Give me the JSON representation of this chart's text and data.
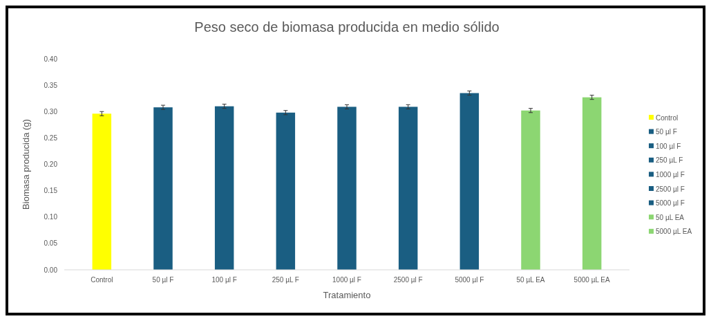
{
  "chart_data": {
    "type": "bar",
    "title": "Peso seco de biomasa producida en medio sólido",
    "xlabel": "Tratamiento",
    "ylabel": "Biomasa producida (g)",
    "categories": [
      "Control",
      "50 µl F",
      "100 µl F",
      "250 µL F",
      "1000 µl F",
      "2500 µl F",
      "5000 µl F",
      "50 µL EA",
      "5000 µL EA"
    ],
    "series": [
      {
        "name": "Control",
        "color": "#ffff00",
        "values": [
          0.296,
          null,
          null,
          null,
          null,
          null,
          null,
          null,
          null
        ],
        "errors": [
          0.004,
          null,
          null,
          null,
          null,
          null,
          null,
          null,
          null
        ]
      },
      {
        "name": "50 µl F",
        "color": "#1a5e82",
        "values": [
          null,
          0.308,
          null,
          null,
          null,
          null,
          null,
          null,
          null
        ],
        "errors": [
          null,
          0.004,
          null,
          null,
          null,
          null,
          null,
          null,
          null
        ]
      },
      {
        "name": "100 µl F",
        "color": "#1a5e82",
        "values": [
          null,
          null,
          0.31,
          null,
          null,
          null,
          null,
          null,
          null
        ],
        "errors": [
          null,
          null,
          0.004,
          null,
          null,
          null,
          null,
          null,
          null
        ]
      },
      {
        "name": "250 µL F",
        "color": "#1a5e82",
        "values": [
          null,
          null,
          null,
          0.298,
          null,
          null,
          null,
          null,
          null
        ],
        "errors": [
          null,
          null,
          null,
          0.004,
          null,
          null,
          null,
          null,
          null
        ]
      },
      {
        "name": "1000 µl F",
        "color": "#1a5e82",
        "values": [
          null,
          null,
          null,
          null,
          0.309,
          null,
          null,
          null,
          null
        ],
        "errors": [
          null,
          null,
          null,
          null,
          0.004,
          null,
          null,
          null,
          null
        ]
      },
      {
        "name": "2500 µl F",
        "color": "#1a5e82",
        "values": [
          null,
          null,
          null,
          null,
          null,
          0.309,
          null,
          null,
          null
        ],
        "errors": [
          null,
          null,
          null,
          null,
          null,
          0.004,
          null,
          null,
          null
        ]
      },
      {
        "name": "5000 µl F",
        "color": "#1a5e82",
        "values": [
          null,
          null,
          null,
          null,
          null,
          null,
          0.335,
          null,
          null
        ],
        "errors": [
          null,
          null,
          null,
          null,
          null,
          null,
          0.004,
          null,
          null
        ]
      },
      {
        "name": "50 µL EA",
        "color": "#8cd672",
        "values": [
          null,
          null,
          null,
          null,
          null,
          null,
          null,
          0.302,
          null
        ],
        "errors": [
          null,
          null,
          null,
          null,
          null,
          null,
          null,
          0.004,
          null
        ]
      },
      {
        "name": "5000 µL EA",
        "color": "#8cd672",
        "values": [
          null,
          null,
          null,
          null,
          null,
          null,
          null,
          null,
          0.327
        ],
        "errors": [
          null,
          null,
          null,
          null,
          null,
          null,
          null,
          null,
          0.004
        ]
      }
    ],
    "ylim": [
      0,
      0.4
    ],
    "yticks": [
      {
        "value": 0,
        "label": "0.00"
      },
      {
        "value": 0.05,
        "label": "0.05"
      },
      {
        "value": 0.1,
        "label": "0.10"
      },
      {
        "value": 0.15,
        "label": "0.15"
      },
      {
        "value": 0.2,
        "label": "0.20"
      },
      {
        "value": 0.25,
        "label": "0.25"
      },
      {
        "value": 0.3,
        "label": "0.30"
      },
      {
        "value": 0.35,
        "label": "0.35"
      },
      {
        "value": 0.4,
        "label": "0.40"
      }
    ],
    "legend": "right"
  }
}
